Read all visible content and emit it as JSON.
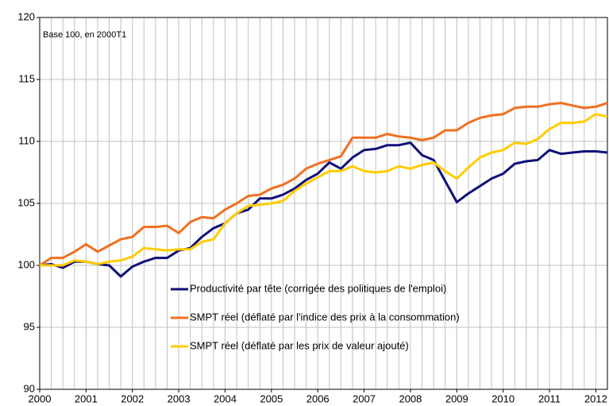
{
  "chart_data": {
    "type": "line",
    "annotation": "Base 100, en 2000T1",
    "x": [
      2000,
      2000.25,
      2000.5,
      2000.75,
      2001,
      2001.25,
      2001.5,
      2001.75,
      2002,
      2002.25,
      2002.5,
      2002.75,
      2003,
      2003.25,
      2003.5,
      2003.75,
      2004,
      2004.25,
      2004.5,
      2004.75,
      2005,
      2005.25,
      2005.5,
      2005.75,
      2006,
      2006.25,
      2006.5,
      2006.75,
      2007,
      2007.25,
      2007.5,
      2007.75,
      2008,
      2008.25,
      2008.5,
      2008.75,
      2009,
      2009.25,
      2009.5,
      2009.75,
      2010,
      2010.25,
      2010.5,
      2010.75,
      2011,
      2011.25,
      2011.5,
      2011.75,
      2012,
      2012.25
    ],
    "series": [
      {
        "name": "Productivité par tête (corrigée des politiques de l'emploi)",
        "color": "#10107a",
        "values": [
          100.0,
          100.1,
          99.8,
          100.3,
          100.3,
          100.1,
          100.0,
          99.1,
          99.9,
          100.3,
          100.6,
          100.6,
          101.2,
          101.4,
          102.3,
          103.0,
          103.4,
          104.2,
          104.5,
          105.4,
          105.4,
          105.7,
          106.2,
          106.9,
          107.4,
          108.3,
          107.8,
          108.7,
          109.3,
          109.4,
          109.7,
          109.7,
          109.9,
          108.9,
          108.5,
          106.8,
          105.1,
          105.8,
          106.4,
          107.0,
          107.4,
          108.2,
          108.4,
          108.5,
          109.3,
          109.0,
          109.1,
          109.2,
          109.2,
          109.1
        ]
      },
      {
        "name": "SMPT réel (déflaté par l'indice des prix à la consommation)",
        "color": "#f07020",
        "values": [
          100.0,
          100.6,
          100.6,
          101.1,
          101.7,
          101.1,
          101.6,
          102.1,
          102.3,
          103.1,
          103.1,
          103.2,
          102.6,
          103.5,
          103.9,
          103.8,
          104.5,
          105.0,
          105.6,
          105.7,
          106.2,
          106.5,
          107.0,
          107.8,
          108.2,
          108.5,
          108.8,
          110.3,
          110.3,
          110.3,
          110.6,
          110.4,
          110.3,
          110.1,
          110.3,
          110.9,
          110.9,
          111.5,
          111.9,
          112.1,
          112.2,
          112.7,
          112.8,
          112.8,
          113.0,
          113.1,
          112.9,
          112.7,
          112.8,
          113.1
        ]
      },
      {
        "name": "SMPT réel (déflaté par les prix de valeur ajouté)",
        "color": "#ffcc00",
        "values": [
          100.0,
          100.0,
          100.0,
          100.4,
          100.3,
          100.1,
          100.3,
          100.4,
          100.7,
          101.4,
          101.3,
          101.2,
          101.3,
          101.3,
          101.9,
          102.1,
          103.4,
          104.2,
          104.8,
          104.9,
          105.0,
          105.2,
          106.0,
          106.6,
          107.1,
          107.6,
          107.6,
          108.0,
          107.6,
          107.5,
          107.6,
          108.0,
          107.8,
          108.1,
          108.3,
          107.6,
          107.0,
          107.9,
          108.7,
          109.1,
          109.3,
          109.9,
          109.8,
          110.2,
          111.0,
          111.5,
          111.5,
          111.6,
          112.2,
          112.0
        ]
      }
    ],
    "xlim": [
      2000,
      2012.25
    ],
    "xticks": [
      2000,
      2001,
      2002,
      2003,
      2004,
      2005,
      2006,
      2007,
      2008,
      2009,
      2010,
      2011,
      2012
    ],
    "ylim": [
      90,
      120
    ],
    "yticks": [
      90,
      95,
      100,
      105,
      110,
      115,
      120
    ],
    "grid": true,
    "legend": "lower center"
  }
}
